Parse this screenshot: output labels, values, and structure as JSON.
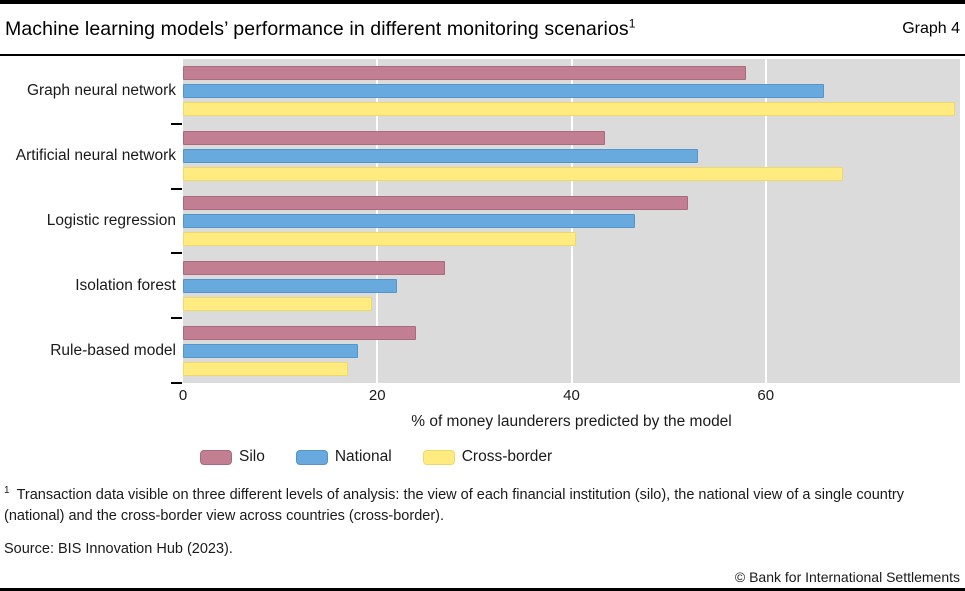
{
  "header": {
    "title": "Machine learning models’ performance in different monitoring scenarios",
    "title_footnote_marker": "1",
    "graph_label": "Graph 4"
  },
  "chart_data": {
    "type": "bar",
    "orientation": "horizontal",
    "title": "Machine learning models’ performance in different monitoring scenarios",
    "categories": [
      "Graph neural network",
      "Artificial neural network",
      "Logistic regression",
      "Isolation forest",
      "Rule-based model"
    ],
    "series": [
      {
        "name": "Silo",
        "color": "#c17f91",
        "border_color": "#aa6a7d",
        "values": [
          58,
          43.5,
          52,
          27,
          24
        ]
      },
      {
        "name": "National",
        "color": "#69aade",
        "border_color": "#5495cc",
        "values": [
          66,
          53,
          46.5,
          22,
          18
        ]
      },
      {
        "name": "Cross-border",
        "color": "#ffeb7f",
        "border_color": "#ecd96b",
        "values": [
          79.5,
          68,
          40.5,
          19.5,
          17
        ]
      }
    ],
    "xlabel": "% of money launderers predicted by the model",
    "x_ticks": [
      0,
      20,
      40,
      60
    ],
    "xlim": [
      0,
      80
    ],
    "grid": true,
    "gridline_color": "#ffffff",
    "plot_background": "#dbdbdb",
    "legend_position": "bottom"
  },
  "footnote": {
    "marker": "1",
    "text": "Transaction data visible on three different levels of analysis: the view of each financial institution (silo), the national view of a single country (national) and the cross-border view across countries (cross-border)."
  },
  "source": "Source: BIS Innovation Hub (2023).",
  "copyright": "© Bank for International Settlements"
}
